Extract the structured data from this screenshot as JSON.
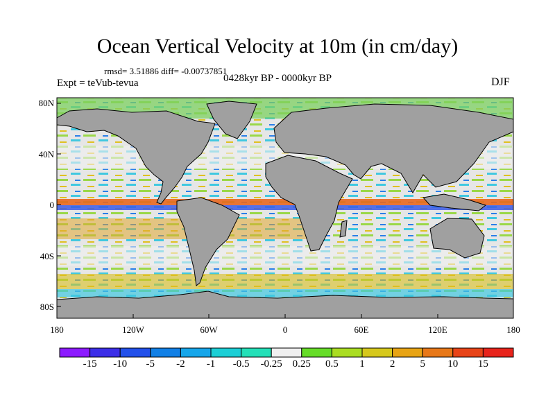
{
  "title": "Ocean Vertical Velocity at 10m (in cm/day)",
  "stats": "rmsd= 3.51886 diff= -0.00737851",
  "period": "0428kyr BP - 0000kyr BP",
  "expt": "Expt = teVub-tevua",
  "season": "DJF",
  "lat_labels": [
    "80N",
    "40N",
    "0",
    "40S",
    "80S"
  ],
  "lon_labels": [
    "180",
    "120W",
    "60W",
    "0",
    "60E",
    "120E",
    "180"
  ],
  "colorbar": {
    "labels": [
      "-15",
      "-10",
      "-5",
      "-2",
      "-1",
      "-0.5",
      "-0.25",
      "0.25",
      "0.5",
      "1",
      "2",
      "5",
      "10",
      "15"
    ],
    "colors": [
      "#8c1aff",
      "#3c2ee8",
      "#2250ea",
      "#1180e6",
      "#16a6ea",
      "#1ccfd6",
      "#24e0b8",
      "#f0f0f0",
      "#66dd28",
      "#aadd22",
      "#d6c81c",
      "#e8a414",
      "#e87818",
      "#e84418",
      "#e8241c"
    ]
  },
  "colors": {
    "land": "#a0a0a0",
    "coast": "#000000"
  }
}
